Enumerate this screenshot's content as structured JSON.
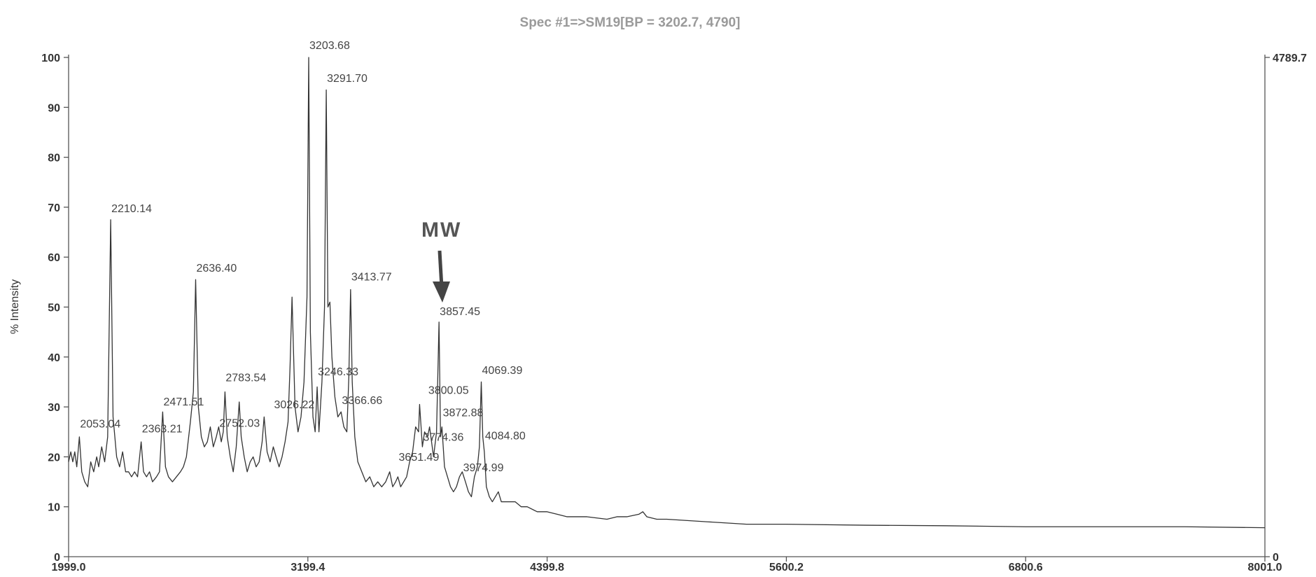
{
  "chart_data": {
    "type": "line",
    "title": "Spec #1=>SM19[BP = 3202.7, 4790]",
    "y_label": "% Intensity",
    "color": "#333333",
    "x": [
      1999,
      2010,
      2020,
      2030,
      2040,
      2053,
      2065,
      2080,
      2095,
      2110,
      2125,
      2140,
      2150,
      2165,
      2180,
      2195,
      2210.14,
      2222,
      2240,
      2255,
      2270,
      2285,
      2300,
      2315,
      2330,
      2345,
      2363,
      2375,
      2390,
      2405,
      2420,
      2440,
      2455,
      2471,
      2485,
      2500,
      2520,
      2540,
      2560,
      2575,
      2590,
      2610,
      2625,
      2636.4,
      2650,
      2665,
      2680,
      2695,
      2710,
      2725,
      2740,
      2752,
      2765,
      2775,
      2783.54,
      2795,
      2810,
      2825,
      2840,
      2855,
      2865,
      2880,
      2895,
      2910,
      2925,
      2940,
      2955,
      2970,
      2980,
      2995,
      3010,
      3026,
      3040,
      3055,
      3070,
      3085,
      3100,
      3110,
      3120,
      3135,
      3150,
      3165,
      3180,
      3195,
      3203.68,
      3212,
      3225,
      3236,
      3246,
      3255,
      3270,
      3283,
      3291.7,
      3300,
      3310,
      3320,
      3335,
      3350,
      3366,
      3380,
      3395,
      3405,
      3413.77,
      3422,
      3435,
      3450,
      3470,
      3490,
      3510,
      3530,
      3550,
      3570,
      3590,
      3610,
      3625,
      3640,
      3651,
      3665,
      3680,
      3695,
      3710,
      3725,
      3740,
      3755,
      3760,
      3774,
      3785,
      3800,
      3810,
      3830,
      3845,
      3857.45,
      3865,
      3872,
      3885,
      3900,
      3915,
      3930,
      3945,
      3960,
      3974,
      3990,
      4005,
      4020,
      4035,
      4050,
      4060,
      4069.39,
      4077,
      4084.8,
      4095,
      4110,
      4125,
      4140,
      4155,
      4170,
      4190,
      4210,
      4240,
      4270,
      4300,
      4350,
      4400,
      4450,
      4500,
      4600,
      4700,
      4750,
      4800,
      4860,
      4880,
      4900,
      4950,
      5000,
      5200,
      5400,
      5600,
      6000,
      6400,
      6800,
      7200,
      7600,
      8001
    ],
    "values": [
      19,
      21,
      19,
      21,
      18,
      24,
      17,
      15,
      14,
      19,
      17,
      20,
      18,
      22,
      19,
      24,
      67.5,
      28,
      20,
      18,
      21,
      17,
      17,
      16,
      17,
      16,
      23,
      17,
      16,
      17,
      15,
      16,
      17,
      29,
      18,
      16,
      15,
      16,
      17,
      18,
      20,
      27,
      33,
      55.5,
      30,
      24,
      22,
      23,
      26,
      22,
      24,
      26,
      23,
      25,
      33,
      24,
      20,
      17,
      22,
      31,
      24,
      20,
      17,
      19,
      20,
      18,
      19,
      23,
      28,
      21,
      19,
      22,
      20,
      18,
      20,
      23,
      27,
      38,
      52,
      30,
      25,
      28,
      35,
      52,
      100,
      45,
      28,
      25,
      34,
      25,
      35,
      50,
      93.5,
      50,
      51,
      40,
      32,
      28,
      29,
      26,
      25,
      36,
      53.5,
      35,
      24,
      19,
      17,
      15,
      16,
      14,
      15,
      14,
      15,
      17,
      14,
      15,
      16,
      14,
      15,
      16,
      19,
      21,
      26,
      25,
      30.5,
      22,
      25,
      24,
      26,
      20,
      25,
      47,
      24,
      26,
      18,
      16,
      14,
      13,
      14,
      16,
      17,
      15,
      13,
      12,
      16,
      18,
      22,
      35,
      24,
      21,
      14,
      12,
      11,
      12,
      13,
      11,
      11,
      11,
      11,
      10,
      10,
      9,
      9,
      8.5,
      8,
      8,
      7.5,
      8,
      8,
      8.5,
      9,
      8,
      7.5,
      7.5,
      7,
      6.5,
      6.5,
      6.3,
      6.2,
      6,
      6,
      6,
      5.8
    ],
    "peaks": {
      "x": [
        2053.04,
        2210.14,
        2363.21,
        2471.51,
        2636.4,
        2752.03,
        2783.54,
        3026.22,
        3203.68,
        3246.33,
        3291.7,
        3366.66,
        3413.77,
        3651.49,
        3774.36,
        3800.05,
        3857.45,
        3872.88,
        3974.99,
        4069.39,
        4084.8
      ],
      "y": [
        25.9,
        69,
        24.9,
        30.3,
        57.1,
        26,
        35.1,
        29.7,
        101.7,
        36.3,
        95.1,
        30.6,
        55.3,
        19.2,
        23.2,
        32.6,
        48.4,
        28.1,
        17.1,
        36.6,
        23.5
      ],
      "labels": [
        "2053.04",
        "2210.14",
        "2363.21",
        "2471.51",
        "2636.40",
        "2752.03",
        "2783.54",
        "3026.22",
        "3203.68",
        "3246.33",
        "3291.70",
        "3366.66",
        "3413.77",
        "3651.49",
        "3774.36",
        "3800.05",
        "3857.45",
        "3872.88",
        "3974.99",
        "4069.39",
        "4084.80"
      ]
    },
    "annotation": "MW",
    "xlim": [
      1999.0,
      8001.0
    ],
    "xticks": [
      {
        "value": 1999.0,
        "label": "1999.0"
      },
      {
        "value": 3199.4,
        "label": "3199.4"
      },
      {
        "value": 4399.8,
        "label": "4399.8"
      },
      {
        "value": 5600.2,
        "label": "5600.2"
      },
      {
        "value": 6800.6,
        "label": "6800.6"
      },
      {
        "value": 8001.0,
        "label": "8001.0"
      }
    ],
    "ylim": [
      0,
      100
    ],
    "yticks": [
      0,
      10,
      20,
      30,
      40,
      50,
      60,
      70,
      80,
      90,
      100
    ],
    "y2lim": [
      0,
      4789.7
    ],
    "y2ticks": [
      0,
      4789.7
    ]
  }
}
